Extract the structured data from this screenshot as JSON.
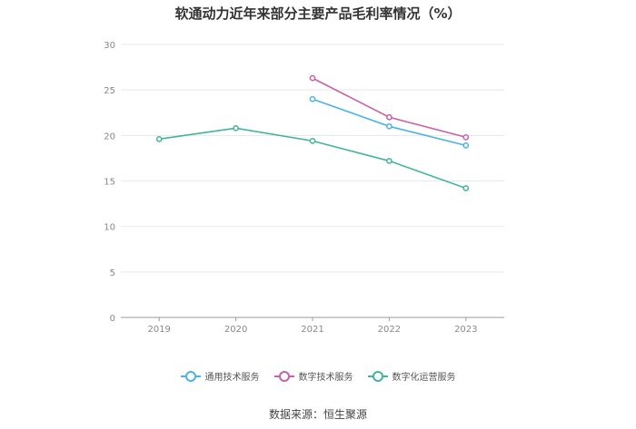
{
  "chart_data": {
    "type": "line",
    "title": "软通动力近年来部分主要产品毛利率情况（%）",
    "x": [
      "2019",
      "2020",
      "2021",
      "2022",
      "2023"
    ],
    "ylim": [
      0,
      30
    ],
    "yticks": [
      "0",
      "5",
      "10",
      "15",
      "20",
      "25",
      "30"
    ],
    "grid": true,
    "legend_position": "bottom",
    "series": [
      {
        "name": "通用技术服务",
        "color": "#4db3e6",
        "values": [
          null,
          null,
          24.0,
          21.0,
          18.9
        ]
      },
      {
        "name": "数字技术服务",
        "color": "#cc5fa8",
        "values": [
          null,
          null,
          26.3,
          22.0,
          19.8
        ]
      },
      {
        "name": "数字化运营服务",
        "color": "#3fb59a",
        "values": [
          19.6,
          20.8,
          19.4,
          17.2,
          14.2
        ]
      }
    ]
  },
  "source": "数据来源：恒生聚源"
}
